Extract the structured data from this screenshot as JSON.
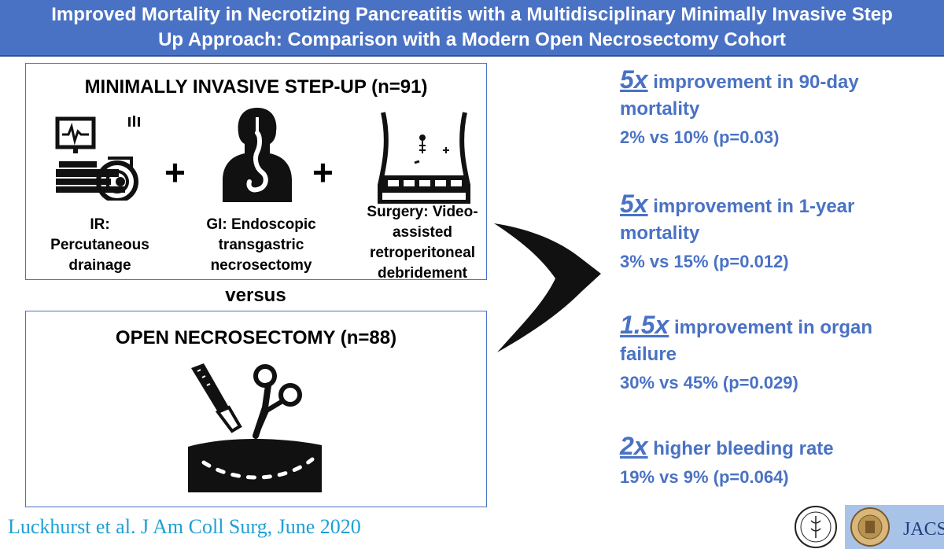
{
  "title": {
    "line1": "Improved Mortality in Necrotizing Pancreatitis with a Multidisciplinary Minimally Invasive Step",
    "line2": "Up Approach: Comparison with a Modern Open Necrosectomy Cohort"
  },
  "step_up": {
    "heading": "MINIMALLY INVASIVE STEP-UP (n=91)",
    "items": [
      {
        "icon": "ct-scanner-icon",
        "caption_lines": [
          "IR:",
          "Percutaneous",
          "drainage"
        ]
      },
      {
        "icon": "endoscopy-icon",
        "caption_lines": [
          "GI: Endoscopic",
          "transgastric",
          "necrosectomy"
        ]
      },
      {
        "icon": "retroperitoneal-surgery-icon",
        "caption_lines": [
          "Surgery: Video-",
          "assisted",
          "retroperitoneal",
          "debridement"
        ]
      }
    ],
    "plus_sign": "+"
  },
  "versus": "versus",
  "open": {
    "heading": "OPEN NECROSECTOMY (n=88)",
    "icon": "open-surgery-icon"
  },
  "arrow_icon": "right-arrow-icon",
  "stats": [
    {
      "multiplier": "5x",
      "line1_rest": " improvement in 90-day",
      "line2": "mortality",
      "line3": "2% vs 10% (p=0.03)"
    },
    {
      "multiplier": "5x",
      "line1_rest": " improvement in 1-year",
      "line2": "mortality",
      "line3": "3% vs 15% (p=0.012)"
    },
    {
      "multiplier": "1.5x",
      "line1_rest": " improvement in organ",
      "line2": "failure",
      "line3": "30% vs 45% (p=0.029)"
    },
    {
      "multiplier": "2x",
      "line1_rest": " higher bleeding rate",
      "line2": "",
      "line3": "19% vs 9% (p=0.064)"
    }
  ],
  "citation": "Luckhurst et al. J Am Coll Surg, June 2020",
  "logos": {
    "left_icon": "new-england-surgical-society-seal-icon",
    "right_icon": "jacs-seal-icon",
    "right_text": "JACS"
  },
  "colors": {
    "accent": "#4a72c4",
    "citation": "#1ea0d6"
  }
}
